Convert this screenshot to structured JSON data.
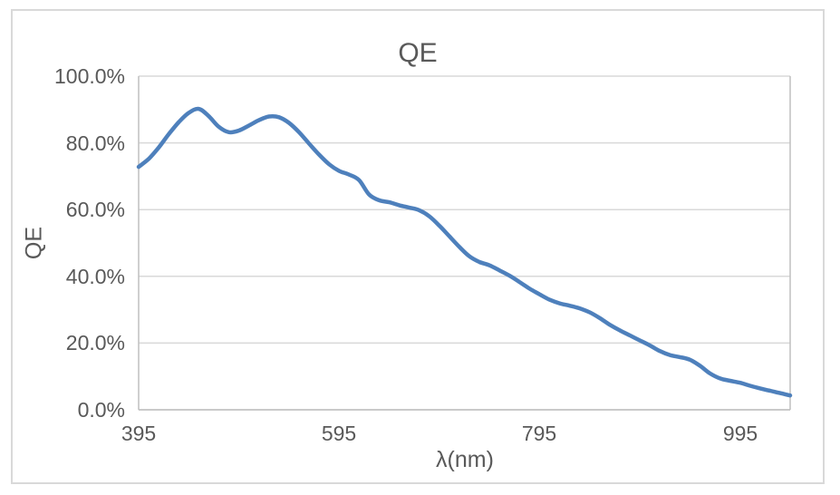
{
  "chart_data": {
    "type": "line",
    "title": "QE",
    "xlabel": "λ(nm)",
    "ylabel": "QE",
    "legend": "none",
    "grid": "horizontal",
    "smooth": true,
    "xlim": [
      395,
      1045
    ],
    "ylim": [
      0,
      100
    ],
    "y_ticks": [
      0,
      20,
      40,
      60,
      80,
      100
    ],
    "y_tick_labels_desc": [
      "100.0%",
      "80.0%",
      "60.0%",
      "40.0%",
      "20.0%",
      "0.0%"
    ],
    "x_tick_values": [
      395,
      595,
      795,
      995
    ],
    "x_tick_labels": [
      "395",
      "595",
      "795",
      "995"
    ],
    "x": [
      395,
      405,
      415,
      425,
      435,
      445,
      455,
      465,
      475,
      485,
      495,
      505,
      515,
      525,
      535,
      545,
      555,
      565,
      575,
      585,
      595,
      605,
      615,
      625,
      635,
      645,
      655,
      665,
      675,
      685,
      695,
      705,
      715,
      725,
      735,
      745,
      755,
      765,
      775,
      785,
      795,
      805,
      815,
      825,
      835,
      845,
      855,
      865,
      875,
      885,
      895,
      905,
      915,
      925,
      935,
      945,
      955,
      965,
      975,
      985,
      995,
      1005,
      1015,
      1025,
      1035,
      1045
    ],
    "series": [
      {
        "name": "QE",
        "values": [
          72.8,
          75.2,
          78.6,
          82.6,
          86.2,
          89.0,
          90.2,
          88.0,
          84.8,
          83.2,
          83.7,
          85.2,
          86.8,
          87.9,
          87.7,
          86.0,
          83.2,
          79.8,
          76.5,
          73.6,
          71.6,
          70.5,
          68.8,
          64.5,
          62.8,
          62.2,
          61.3,
          60.6,
          59.8,
          58.0,
          55.2,
          52.0,
          48.8,
          46.0,
          44.3,
          43.3,
          41.8,
          40.2,
          38.3,
          36.3,
          34.6,
          33.0,
          31.9,
          31.2,
          30.4,
          29.2,
          27.5,
          25.5,
          23.8,
          22.3,
          20.8,
          19.3,
          17.6,
          16.4,
          15.8,
          15.0,
          13.2,
          10.9,
          9.4,
          8.7,
          8.1,
          7.2,
          6.4,
          5.7,
          5.0,
          4.3
        ]
      }
    ],
    "line_color": "#4E80BC",
    "gridline_color": "#d9d9d9",
    "axis_line_color": "#bfbfbf",
    "text_color": "#595959"
  }
}
